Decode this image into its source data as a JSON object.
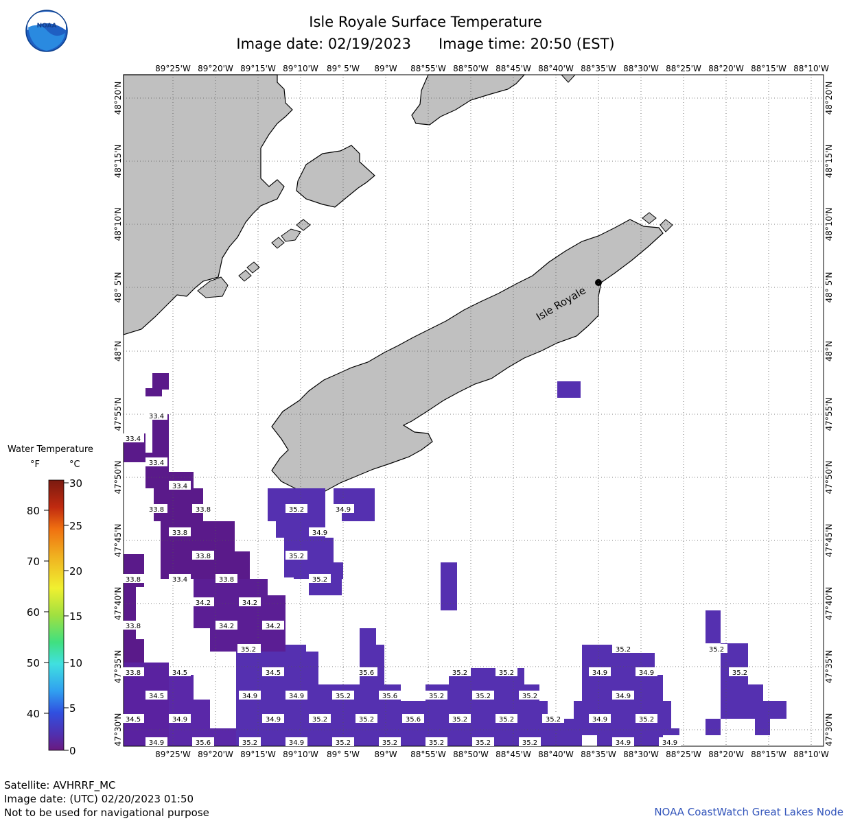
{
  "header": {
    "title": "Isle Royale Surface Temperature",
    "image_date": "Image date: 02/19/2023",
    "image_time": "Image time: 20:50 (EST)"
  },
  "logo": {
    "text": "NOAA",
    "icon": "noaa-logo"
  },
  "map": {
    "top_lon_labels": [
      "89°25'W",
      "89°20'W",
      "89°15'W",
      "89°10'W",
      "89° 5'W",
      "89°W",
      "88°55'W",
      "88°50'W",
      "88°45'W",
      "88°40'W",
      "88°35'W",
      "88°30'W",
      "88°25'W",
      "88°20'W",
      "88°15'W",
      "88°10'W"
    ],
    "bottom_lon_labels": [
      "89°25'W",
      "89°20'W",
      "89°15'W",
      "89°10'W",
      "89° 5'W",
      "89°W",
      "88°55'W",
      "88°50'W",
      "88°45'W",
      "88°40'W",
      "88°35'W",
      "88°30'W",
      "88°25'W",
      "88°20'W",
      "88°15'W",
      "88°10'W"
    ],
    "lat_labels": [
      "48°20'N",
      "48°15'N",
      "48°10'N",
      "48° 5'N",
      "48°N",
      "47°55'N",
      "47°50'N",
      "47°45'N",
      "47°40'N",
      "47°35'N",
      "47°30'N"
    ],
    "island_label": "Isle Royale",
    "colors": {
      "land": "#c0c0c0",
      "water": "#ffffff",
      "cold": "#5a1a8a",
      "cool": "#5a2aa0",
      "mid": "#5530b0"
    }
  },
  "temperature_labels": [
    {
      "v": "33.4",
      "col": 0,
      "row": "a"
    },
    {
      "v": "33.4",
      "col": 0,
      "row": "b"
    },
    {
      "v": "33.4",
      "col": 0,
      "row": "c"
    },
    {
      "v": "33.4",
      "col": 0,
      "row": "d"
    },
    {
      "v": "33.8",
      "col": 0,
      "row": "e"
    },
    {
      "v": "33.8",
      "col": 0,
      "row": "f"
    },
    {
      "v": "33.8",
      "col": 0,
      "row": "g"
    },
    {
      "v": "33.8",
      "col": 0,
      "row": "h"
    },
    {
      "v": "33.4",
      "col": 0,
      "row": "i"
    },
    {
      "v": "33.8",
      "col": 0,
      "row": "j"
    },
    {
      "v": "33.8",
      "col": 0,
      "row": "k"
    },
    {
      "v": "34.2",
      "col": 0,
      "row": "l"
    },
    {
      "v": "34.2",
      "col": 0,
      "row": "m"
    },
    {
      "v": "34.2",
      "col": 0,
      "row": "n"
    },
    {
      "v": "34.2",
      "col": 0,
      "row": "o"
    },
    {
      "v": "34.2",
      "col": 0,
      "row": "p"
    },
    {
      "v": "33.8",
      "col": 0,
      "row": "q"
    },
    {
      "v": "33.8",
      "col": 0,
      "row": "r"
    },
    {
      "v": "34.5",
      "col": 0,
      "row": "s"
    },
    {
      "v": "34.5",
      "col": 0,
      "row": "t"
    },
    {
      "v": "34.5",
      "col": 0,
      "row": "u"
    },
    {
      "v": "34.5",
      "col": 0,
      "row": "v"
    },
    {
      "v": "34.9",
      "col": 0,
      "row": "w"
    },
    {
      "v": "34.9",
      "col": 0,
      "row": "x"
    },
    {
      "v": "34.9",
      "col": 0,
      "row": "y"
    },
    {
      "v": "34.9",
      "col": 0,
      "row": "z"
    },
    {
      "v": "35.6",
      "col": 0,
      "row": "aa"
    },
    {
      "v": "35.2",
      "col": 0,
      "row": "ab"
    },
    {
      "v": "34.9",
      "col": 0,
      "row": "ac"
    },
    {
      "v": "35.2",
      "col": 0,
      "row": "ad"
    },
    {
      "v": "34.9",
      "col": 0,
      "row": "ae"
    },
    {
      "v": "35.2",
      "col": 0,
      "row": "af"
    },
    {
      "v": "35.2",
      "col": 0,
      "row": "ag"
    },
    {
      "v": "35.2",
      "col": 0,
      "row": "ah"
    },
    {
      "v": "35.6",
      "col": 0,
      "row": "ai"
    },
    {
      "v": "35.6",
      "col": 0,
      "row": "aj"
    },
    {
      "v": "35.2",
      "col": 0,
      "row": "ak"
    },
    {
      "v": "35.2",
      "col": 0,
      "row": "al"
    },
    {
      "v": "35.2",
      "col": 0,
      "row": "am"
    },
    {
      "v": "35.2",
      "col": 0,
      "row": "an"
    },
    {
      "v": "35.2",
      "col": 0,
      "row": "ao"
    },
    {
      "v": "35.2",
      "col": 0,
      "row": "ap"
    },
    {
      "v": "35.2",
      "col": 0,
      "row": "aq"
    },
    {
      "v": "35.2",
      "col": 0,
      "row": "ar"
    },
    {
      "v": "35.2",
      "col": 0,
      "row": "as"
    },
    {
      "v": "35.2",
      "col": 0,
      "row": "at"
    },
    {
      "v": "35.2",
      "col": 0,
      "row": "au"
    },
    {
      "v": "35.2",
      "col": 0,
      "row": "av"
    },
    {
      "v": "35.2",
      "col": 0,
      "row": "aw"
    },
    {
      "v": "34.9",
      "col": 0,
      "row": "ax"
    },
    {
      "v": "34.9",
      "col": 0,
      "row": "ay"
    },
    {
      "v": "34.9",
      "col": 0,
      "row": "az"
    },
    {
      "v": "34.9",
      "col": 0,
      "row": "ba"
    },
    {
      "v": "34.9",
      "col": 0,
      "row": "bb"
    },
    {
      "v": "35.2",
      "col": 0,
      "row": "bc"
    },
    {
      "v": "35.2",
      "col": 0,
      "row": "bd"
    },
    {
      "v": "34.9",
      "col": 0,
      "row": "be"
    },
    {
      "v": "35.6",
      "col": 0,
      "row": "bf"
    },
    {
      "v": "35.2",
      "col": 0,
      "row": "bg"
    },
    {
      "v": "34.9",
      "col": 0,
      "row": "bh"
    },
    {
      "v": "35.2",
      "col": 0,
      "row": "bi"
    },
    {
      "v": "35.2",
      "col": 0,
      "row": "bj"
    },
    {
      "v": "35.2",
      "col": 0,
      "row": "bk"
    },
    {
      "v": "35.2",
      "col": 0,
      "row": "bl"
    },
    {
      "v": "35.2",
      "col": 0,
      "row": "bm"
    },
    {
      "v": "34.9",
      "col": 0,
      "row": "bn"
    },
    {
      "v": "34.9",
      "col": 0,
      "row": "bo"
    },
    {
      "v": "35.2",
      "col": 0,
      "row": "bp"
    },
    {
      "v": "35.2",
      "col": 0,
      "row": "bq"
    },
    {
      "v": "35.2",
      "col": 0,
      "row": "br"
    }
  ],
  "legend": {
    "title": "Water Temperature",
    "unit_f": "°F",
    "unit_c": "°C",
    "f_ticks": [
      "80",
      "70",
      "60",
      "50",
      "40"
    ],
    "c_ticks": [
      "30",
      "25",
      "20",
      "15",
      "10",
      "5",
      "0"
    ]
  },
  "footer": {
    "satellite": "Satellite: AVHRRF_MC",
    "utc_date": "Image date: (UTC) 02/20/2023  01:50",
    "note": "Not to be used for navigational purpose",
    "credit": "NOAA CoastWatch Great Lakes Node"
  }
}
